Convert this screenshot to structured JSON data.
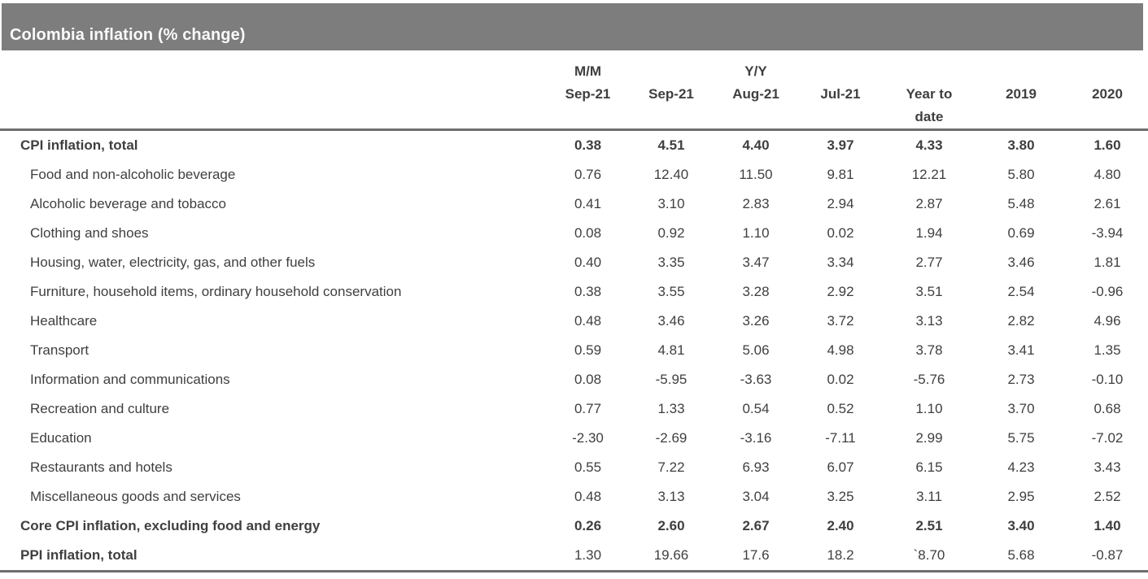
{
  "title_bar": {
    "background": "#7d7d7d",
    "text_color": "#fafafa"
  },
  "rule_color": "#6e6e6e",
  "chart_data": {
    "type": "table",
    "title": "Colombia inflation (% change)",
    "columns": [
      {
        "line1": "M/M",
        "line2": "Sep-21",
        "line3": ""
      },
      {
        "line1": "",
        "line2": "Sep-21",
        "line3": ""
      },
      {
        "line1": "Y/Y",
        "line2": "Aug-21",
        "line3": ""
      },
      {
        "line1": "",
        "line2": "Jul-21",
        "line3": ""
      },
      {
        "line1": "",
        "line2": "Year to",
        "line3": "date"
      },
      {
        "line1": "",
        "line2": "2019",
        "line3": ""
      },
      {
        "line1": "",
        "line2": "2020",
        "line3": ""
      }
    ],
    "rows": [
      {
        "label": "CPI inflation, total",
        "indent": false,
        "label_bold": true,
        "values_bold": true,
        "values": [
          "0.38",
          "4.51",
          "4.40",
          "3.97",
          "4.33",
          "3.80",
          "1.60"
        ]
      },
      {
        "label": "Food and non-alcoholic beverage",
        "indent": true,
        "label_bold": false,
        "values_bold": false,
        "values": [
          "0.76",
          "12.40",
          "11.50",
          "9.81",
          "12.21",
          "5.80",
          "4.80"
        ]
      },
      {
        "label": "Alcoholic beverage and tobacco",
        "indent": true,
        "label_bold": false,
        "values_bold": false,
        "values": [
          "0.41",
          "3.10",
          "2.83",
          "2.94",
          "2.87",
          "5.48",
          "2.61"
        ]
      },
      {
        "label": "Clothing and shoes",
        "indent": true,
        "label_bold": false,
        "values_bold": false,
        "values": [
          "0.08",
          "0.92",
          "1.10",
          "0.02",
          "1.94",
          "0.69",
          "-3.94"
        ]
      },
      {
        "label": "Housing, water, electricity, gas, and other fuels",
        "indent": true,
        "label_bold": false,
        "values_bold": false,
        "values": [
          "0.40",
          "3.35",
          "3.47",
          "3.34",
          "2.77",
          "3.46",
          "1.81"
        ]
      },
      {
        "label": "Furniture, household items, ordinary household conservation",
        "indent": true,
        "label_bold": false,
        "values_bold": false,
        "values": [
          "0.38",
          "3.55",
          "3.28",
          "2.92",
          "3.51",
          "2.54",
          "-0.96"
        ]
      },
      {
        "label": "Healthcare",
        "indent": true,
        "label_bold": false,
        "values_bold": false,
        "values": [
          "0.48",
          "3.46",
          "3.26",
          "3.72",
          "3.13",
          "2.82",
          "4.96"
        ]
      },
      {
        "label": "Transport",
        "indent": true,
        "label_bold": false,
        "values_bold": false,
        "values": [
          "0.59",
          "4.81",
          "5.06",
          "4.98",
          "3.78",
          "3.41",
          "1.35"
        ]
      },
      {
        "label": "Information and communications",
        "indent": true,
        "label_bold": false,
        "values_bold": false,
        "values": [
          "0.08",
          "-5.95",
          "-3.63",
          "0.02",
          "-5.76",
          "2.73",
          "-0.10"
        ]
      },
      {
        "label": "Recreation and culture",
        "indent": true,
        "label_bold": false,
        "values_bold": false,
        "values": [
          "0.77",
          "1.33",
          "0.54",
          "0.52",
          "1.10",
          "3.70",
          "0.68"
        ]
      },
      {
        "label": "Education",
        "indent": true,
        "label_bold": false,
        "values_bold": false,
        "values": [
          "-2.30",
          "-2.69",
          "-3.16",
          "-7.11",
          "2.99",
          "5.75",
          "-7.02"
        ]
      },
      {
        "label": "Restaurants and hotels",
        "indent": true,
        "label_bold": false,
        "values_bold": false,
        "values": [
          "0.55",
          "7.22",
          "6.93",
          "6.07",
          "6.15",
          "4.23",
          "3.43"
        ]
      },
      {
        "label": "Miscellaneous goods and services",
        "indent": true,
        "label_bold": false,
        "values_bold": false,
        "values": [
          "0.48",
          "3.13",
          "3.04",
          "3.25",
          "3.11",
          "2.95",
          "2.52"
        ]
      },
      {
        "label": "Core CPI inflation, excluding food and energy",
        "indent": false,
        "label_bold": true,
        "values_bold": true,
        "values": [
          "0.26",
          "2.60",
          "2.67",
          "2.40",
          "2.51",
          "3.40",
          "1.40"
        ]
      },
      {
        "label": "PPI inflation, total",
        "indent": false,
        "label_bold": true,
        "values_bold": false,
        "values": [
          "1.30",
          "19.66",
          "17.6",
          "18.2",
          "`8.70",
          "5.68",
          "-0.87"
        ]
      }
    ]
  }
}
